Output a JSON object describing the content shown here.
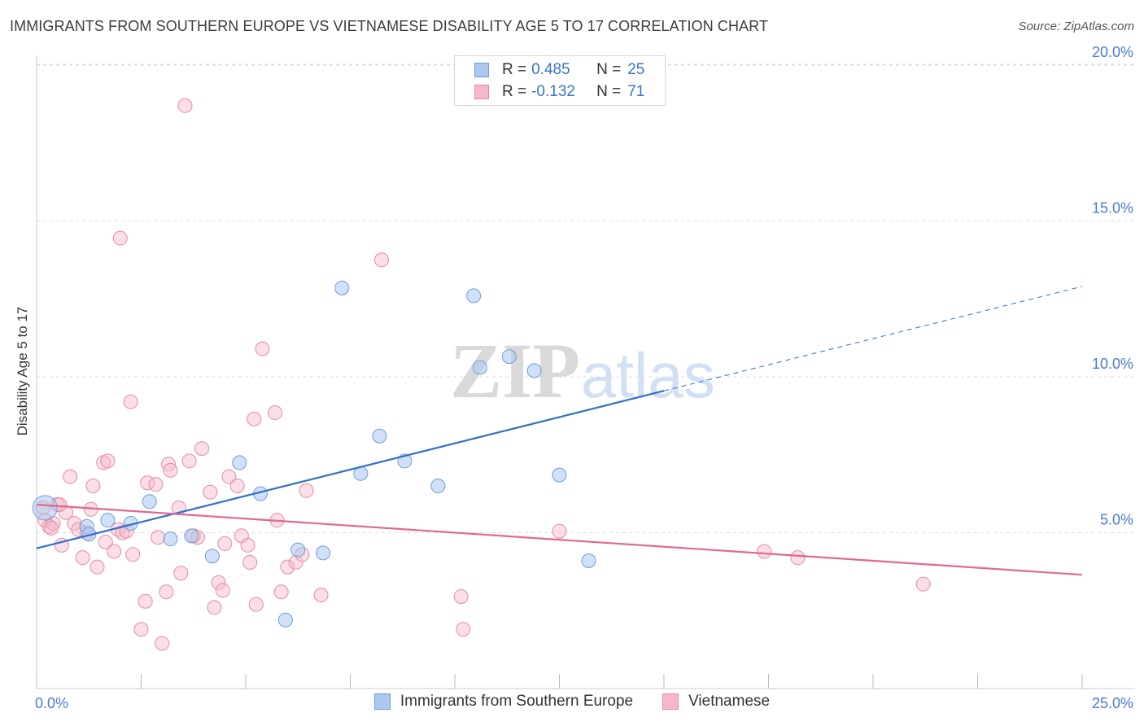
{
  "header": {
    "title": "IMMIGRANTS FROM SOUTHERN EUROPE VS VIETNAMESE DISABILITY AGE 5 TO 17 CORRELATION CHART",
    "source": "Source: ZipAtlas.com"
  },
  "watermark": {
    "zip": "ZIP",
    "atlas": "atlas"
  },
  "stats": {
    "r_label": "R =",
    "n_label": "N =",
    "rows": [
      {
        "r": "0.485",
        "n": "25"
      },
      {
        "r": "-0.132",
        "n": "71"
      }
    ]
  },
  "colors": {
    "series1_fill": "#aac8f0",
    "series1_stroke": "#6d9de0",
    "series1_line": "#2f6fce",
    "series2_fill": "#f5b8ca",
    "series2_stroke": "#e88aa6",
    "series2_line": "#e06894",
    "grid": "#dddddd",
    "tick_text": "#4a7bd0"
  },
  "chart_data": {
    "type": "scatter",
    "title": "IMMIGRANTS FROM SOUTHERN EUROPE VS VIETNAMESE DISABILITY AGE 5 TO 17 CORRELATION CHART",
    "xlabel": "",
    "ylabel": "Disability Age 5 to 17",
    "xlim": [
      0,
      25
    ],
    "ylim": [
      0,
      20.5
    ],
    "x_tick_labels": [
      "0.0%",
      "25.0%"
    ],
    "y_tick_labels": [
      "5.0%",
      "10.0%",
      "15.0%",
      "20.0%"
    ],
    "y_ticks": [
      5,
      10,
      15,
      20
    ],
    "grid": true,
    "legend_position": "bottom",
    "series": [
      {
        "name": "Immigrants from Southern Europe",
        "r": 0.485,
        "n": 25,
        "points": [
          {
            "x": 0.2,
            "y": 5.8,
            "size": 15
          },
          {
            "x": 1.2,
            "y": 5.2,
            "size": 8
          },
          {
            "x": 1.25,
            "y": 4.95,
            "size": 8
          },
          {
            "x": 1.7,
            "y": 5.4,
            "size": 8
          },
          {
            "x": 2.25,
            "y": 5.3,
            "size": 8
          },
          {
            "x": 2.7,
            "y": 6.0,
            "size": 8
          },
          {
            "x": 3.2,
            "y": 4.8,
            "size": 8
          },
          {
            "x": 3.7,
            "y": 4.9,
            "size": 8
          },
          {
            "x": 4.2,
            "y": 4.25,
            "size": 8
          },
          {
            "x": 4.85,
            "y": 7.25,
            "size": 8
          },
          {
            "x": 5.35,
            "y": 6.25,
            "size": 8
          },
          {
            "x": 5.95,
            "y": 2.2,
            "size": 8
          },
          {
            "x": 6.25,
            "y": 4.45,
            "size": 8
          },
          {
            "x": 6.85,
            "y": 4.35,
            "size": 8
          },
          {
            "x": 7.3,
            "y": 12.85,
            "size": 8
          },
          {
            "x": 7.75,
            "y": 6.9,
            "size": 8
          },
          {
            "x": 8.2,
            "y": 8.1,
            "size": 8
          },
          {
            "x": 8.8,
            "y": 7.3,
            "size": 8
          },
          {
            "x": 9.6,
            "y": 6.5,
            "size": 8
          },
          {
            "x": 10.45,
            "y": 12.6,
            "size": 8
          },
          {
            "x": 10.6,
            "y": 10.3,
            "size": 8
          },
          {
            "x": 11.3,
            "y": 10.65,
            "size": 8
          },
          {
            "x": 11.9,
            "y": 10.2,
            "size": 8
          },
          {
            "x": 12.5,
            "y": 6.85,
            "size": 8
          },
          {
            "x": 13.2,
            "y": 4.1,
            "size": 8
          }
        ],
        "trend": {
          "x0": 0,
          "y0": 4.5,
          "x1": 15,
          "y1": 9.55,
          "dashed_to_x": 25,
          "dashed_to_y": 12.9
        }
      },
      {
        "name": "Vietnamese",
        "r": -0.132,
        "n": 71,
        "points": [
          {
            "x": 0.15,
            "y": 5.8
          },
          {
            "x": 0.2,
            "y": 5.4
          },
          {
            "x": 0.3,
            "y": 5.2
          },
          {
            "x": 0.4,
            "y": 5.3
          },
          {
            "x": 0.5,
            "y": 5.9
          },
          {
            "x": 0.6,
            "y": 4.6
          },
          {
            "x": 0.7,
            "y": 5.65
          },
          {
            "x": 0.8,
            "y": 6.8
          },
          {
            "x": 0.9,
            "y": 5.3
          },
          {
            "x": 1.0,
            "y": 5.1
          },
          {
            "x": 1.1,
            "y": 4.2
          },
          {
            "x": 1.2,
            "y": 5.0
          },
          {
            "x": 1.3,
            "y": 5.75
          },
          {
            "x": 1.35,
            "y": 6.5
          },
          {
            "x": 1.45,
            "y": 3.9
          },
          {
            "x": 1.6,
            "y": 7.25
          },
          {
            "x": 1.65,
            "y": 4.7
          },
          {
            "x": 1.7,
            "y": 7.3
          },
          {
            "x": 1.85,
            "y": 4.4
          },
          {
            "x": 1.95,
            "y": 5.1
          },
          {
            "x": 2.0,
            "y": 14.45
          },
          {
            "x": 2.05,
            "y": 5.0
          },
          {
            "x": 2.15,
            "y": 5.05
          },
          {
            "x": 2.25,
            "y": 9.2
          },
          {
            "x": 2.3,
            "y": 4.3
          },
          {
            "x": 2.5,
            "y": 1.9
          },
          {
            "x": 2.6,
            "y": 2.8
          },
          {
            "x": 2.65,
            "y": 6.6
          },
          {
            "x": 2.85,
            "y": 6.55
          },
          {
            "x": 2.9,
            "y": 4.85
          },
          {
            "x": 3.0,
            "y": 1.45
          },
          {
            "x": 3.1,
            "y": 3.1
          },
          {
            "x": 3.15,
            "y": 7.2
          },
          {
            "x": 3.2,
            "y": 7.0
          },
          {
            "x": 3.4,
            "y": 5.8
          },
          {
            "x": 3.45,
            "y": 3.7
          },
          {
            "x": 3.55,
            "y": 18.7
          },
          {
            "x": 3.65,
            "y": 7.3
          },
          {
            "x": 3.75,
            "y": 4.9
          },
          {
            "x": 3.85,
            "y": 4.85
          },
          {
            "x": 3.95,
            "y": 7.7
          },
          {
            "x": 4.15,
            "y": 6.3
          },
          {
            "x": 4.25,
            "y": 2.6
          },
          {
            "x": 4.35,
            "y": 3.4
          },
          {
            "x": 4.45,
            "y": 3.15
          },
          {
            "x": 4.5,
            "y": 4.65
          },
          {
            "x": 4.6,
            "y": 6.8
          },
          {
            "x": 4.8,
            "y": 6.5
          },
          {
            "x": 4.9,
            "y": 4.9
          },
          {
            "x": 5.05,
            "y": 4.6
          },
          {
            "x": 5.1,
            "y": 4.05
          },
          {
            "x": 5.2,
            "y": 8.65
          },
          {
            "x": 5.25,
            "y": 2.7
          },
          {
            "x": 5.4,
            "y": 10.9
          },
          {
            "x": 5.7,
            "y": 8.85
          },
          {
            "x": 5.75,
            "y": 5.4
          },
          {
            "x": 5.85,
            "y": 3.1
          },
          {
            "x": 6.0,
            "y": 3.9
          },
          {
            "x": 6.2,
            "y": 4.05
          },
          {
            "x": 6.35,
            "y": 4.3
          },
          {
            "x": 6.45,
            "y": 6.35
          },
          {
            "x": 6.8,
            "y": 3.0
          },
          {
            "x": 8.25,
            "y": 13.75
          },
          {
            "x": 10.15,
            "y": 2.95
          },
          {
            "x": 10.2,
            "y": 1.9
          },
          {
            "x": 12.5,
            "y": 5.05
          },
          {
            "x": 17.4,
            "y": 4.4
          },
          {
            "x": 18.2,
            "y": 4.2
          },
          {
            "x": 21.2,
            "y": 3.35
          },
          {
            "x": 0.35,
            "y": 5.15
          },
          {
            "x": 0.55,
            "y": 5.9
          }
        ],
        "trend": {
          "x0": 0,
          "y0": 5.9,
          "x1": 25,
          "y1": 3.65
        }
      }
    ]
  },
  "legend": {
    "items": [
      "Immigrants from Southern Europe",
      "Vietnamese"
    ]
  }
}
